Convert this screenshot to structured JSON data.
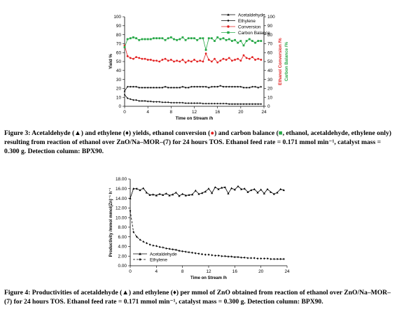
{
  "figure3": {
    "caption": {
      "part1": "Figure 3: Acetaldehyde (",
      "sym1": "▲",
      "part2": ") and ethylene (",
      "sym2": "♦",
      "part3": ") yields, ethanol conversion (",
      "sym3": "●",
      "part4": ") and carbon balance (",
      "sym4": "■",
      "part5": ", ethanol, acetaldehyde, ethylene only) resulting from reaction of ethanol over ZnO/Na–MOR–(7) for 24 hours TOS. Ethanol feed rate = 0.171 mmol min⁻¹, catalyst mass = 0.300 g. Detection column: BPX90."
    },
    "chart_data": {
      "type": "line",
      "xlabel": "Time on Stream /h",
      "ylabel": "Yield %",
      "ylabel_right": [
        "Ethanol Conversion /%",
        "Carbon Balance /%"
      ],
      "xlim": [
        0,
        24
      ],
      "ylim": [
        0,
        100
      ],
      "x_ticks": [
        "0",
        "4",
        "8",
        "12",
        "16",
        "20",
        "24"
      ],
      "y_ticks": [
        "0",
        "10",
        "20",
        "30",
        "40",
        "50",
        "60",
        "70",
        "80",
        "90",
        "100"
      ],
      "y_ticks_right": [
        "0",
        "10",
        "20",
        "30",
        "40",
        "50",
        "60",
        "70",
        "80",
        "90",
        "100"
      ],
      "legend_position": "top-right",
      "x": [
        0,
        0.5,
        1,
        1.5,
        2,
        2.5,
        3,
        3.5,
        4,
        4.5,
        5,
        5.5,
        6,
        6.5,
        7,
        7.5,
        8,
        8.5,
        9,
        9.5,
        10,
        10.5,
        11,
        11.5,
        12,
        12.5,
        13,
        13.5,
        14,
        14.5,
        15,
        15.5,
        16,
        16.5,
        17,
        17.5,
        18,
        18.5,
        19,
        19.5,
        20,
        20.5,
        21,
        21.5,
        22,
        22.5,
        23,
        23.5
      ],
      "series": [
        {
          "name": "Acetaldehyde",
          "color": "#000000",
          "marker": "triangle",
          "values": [
            17,
            22,
            22,
            22,
            22,
            21,
            21,
            21,
            21,
            21,
            21,
            21,
            21,
            21,
            22,
            21,
            21,
            21,
            21,
            21,
            22,
            21,
            21,
            22,
            22,
            22,
            22,
            22,
            22,
            21,
            22,
            22,
            22,
            23,
            22,
            22,
            22,
            22,
            22,
            22,
            22,
            21,
            21,
            21,
            22,
            22,
            21,
            22
          ]
        },
        {
          "name": "Ethylene",
          "color": "#000000",
          "marker": "diamond",
          "values": [
            13,
            9,
            8,
            7,
            7,
            6,
            6,
            6,
            5.5,
            5.5,
            5,
            5,
            5,
            4.5,
            4.5,
            4.5,
            4,
            4,
            4,
            4,
            4,
            3.5,
            3.5,
            3.5,
            3.5,
            3.5,
            3.5,
            3,
            3,
            3,
            3,
            3,
            3,
            3,
            3,
            3,
            2.5,
            2.5,
            2.5,
            2.5,
            2.5,
            2.5,
            2.5,
            2.5,
            2.5,
            2.5,
            2.5,
            2.5
          ]
        },
        {
          "name": "Conversion",
          "color": "#e32222",
          "marker": "circle",
          "values": [
            68,
            56,
            54,
            53,
            55,
            54,
            53,
            53,
            52,
            52,
            51,
            51,
            50,
            52,
            53,
            51,
            52,
            50,
            51,
            50,
            52,
            49,
            51,
            50,
            52,
            50,
            51,
            50,
            59,
            52,
            50,
            53,
            49,
            51,
            53,
            52,
            54,
            51,
            52,
            53,
            51,
            57,
            54,
            53,
            55,
            52,
            53,
            52
          ]
        },
        {
          "name": "Carbon Balance",
          "color": "#27a847",
          "marker": "square",
          "values": [
            66,
            75,
            76,
            77,
            76,
            74,
            75,
            75,
            75,
            75,
            76,
            76,
            76,
            76,
            74,
            76,
            77,
            75,
            74,
            75,
            77,
            74,
            76,
            76,
            76,
            74,
            76,
            76,
            63,
            76,
            76,
            73,
            77,
            75,
            76,
            74,
            75,
            73,
            74,
            71,
            73,
            68,
            73,
            75,
            73,
            71,
            73,
            73
          ]
        }
      ]
    }
  },
  "figure4": {
    "caption": {
      "part1": "Figure 4: Productivities of acetaldehyde (",
      "sym1": "▲",
      "part2": ") and ethylene (",
      "sym2": "♦",
      "part3": ") per mmol of ZnO obtained from reaction of ethanol over ZnO/Na–MOR–(7) for 24 hours TOS. Ethanol feed rate = 0.171 mmol min⁻¹, catalyst mass = 0.300 g. Detection column: BPX90."
    },
    "chart_data": {
      "type": "line",
      "xlabel": "Time on Stream /h",
      "ylabel": "Productivity /mmol mmol(Zn)⁻¹ h⁻¹",
      "xlim": [
        0,
        24
      ],
      "ylim": [
        0,
        18
      ],
      "x_ticks": [
        "0",
        "4",
        "8",
        "12",
        "16",
        "20",
        "24"
      ],
      "y_ticks": [
        "0.00",
        "2.00",
        "4.00",
        "6.00",
        "8.00",
        "10.00",
        "12.00",
        "14.00",
        "16.00",
        "18.00"
      ],
      "legend_position": "bottom-left",
      "x": [
        0,
        0.5,
        1,
        1.5,
        2,
        2.5,
        3,
        3.5,
        4,
        4.5,
        5,
        5.5,
        6,
        6.5,
        7,
        7.5,
        8,
        8.5,
        9,
        9.5,
        10,
        10.5,
        11,
        11.5,
        12,
        12.5,
        13,
        13.5,
        14,
        14.5,
        15,
        15.5,
        16,
        16.5,
        17,
        17.5,
        18,
        18.5,
        19,
        19.5,
        20,
        20.5,
        21,
        21.5,
        22,
        22.5,
        23,
        23.5
      ],
      "series": [
        {
          "name": "Acetaldehyde",
          "color": "#000000",
          "marker": "triangle",
          "dash": "solid",
          "values": [
            14.0,
            16.0,
            16.0,
            15.7,
            16.1,
            15.2,
            14.7,
            14.8,
            14.6,
            14.9,
            14.7,
            15.0,
            14.6,
            14.8,
            15.2,
            14.5,
            14.9,
            14.6,
            14.7,
            14.8,
            15.6,
            14.9,
            15.1,
            15.4,
            16.0,
            15.1,
            16.3,
            15.9,
            16.2,
            16.3,
            15.0,
            16.1,
            15.8,
            16.5,
            15.9,
            16.0,
            15.3,
            15.7,
            15.9,
            15.2,
            15.8,
            15.0,
            15.9,
            15.3,
            14.9,
            15.2,
            15.9,
            15.7
          ]
        },
        {
          "name": "Ethylene",
          "color": "#000000",
          "marker": "diamond",
          "dash": "dashed",
          "values": [
            11.4,
            7.0,
            6.0,
            5.4,
            5.0,
            4.7,
            4.4,
            4.2,
            4.1,
            3.9,
            3.8,
            3.6,
            3.5,
            3.4,
            3.3,
            3.1,
            3.0,
            2.9,
            2.8,
            2.7,
            2.6,
            2.5,
            2.4,
            2.3,
            2.3,
            2.2,
            2.1,
            2.1,
            2.0,
            2.0,
            1.9,
            1.9,
            1.8,
            1.8,
            1.7,
            1.7,
            1.6,
            1.6,
            1.6,
            1.5,
            1.5,
            1.5,
            1.5,
            1.4,
            1.4,
            1.4,
            1.4,
            1.4
          ]
        }
      ]
    }
  }
}
